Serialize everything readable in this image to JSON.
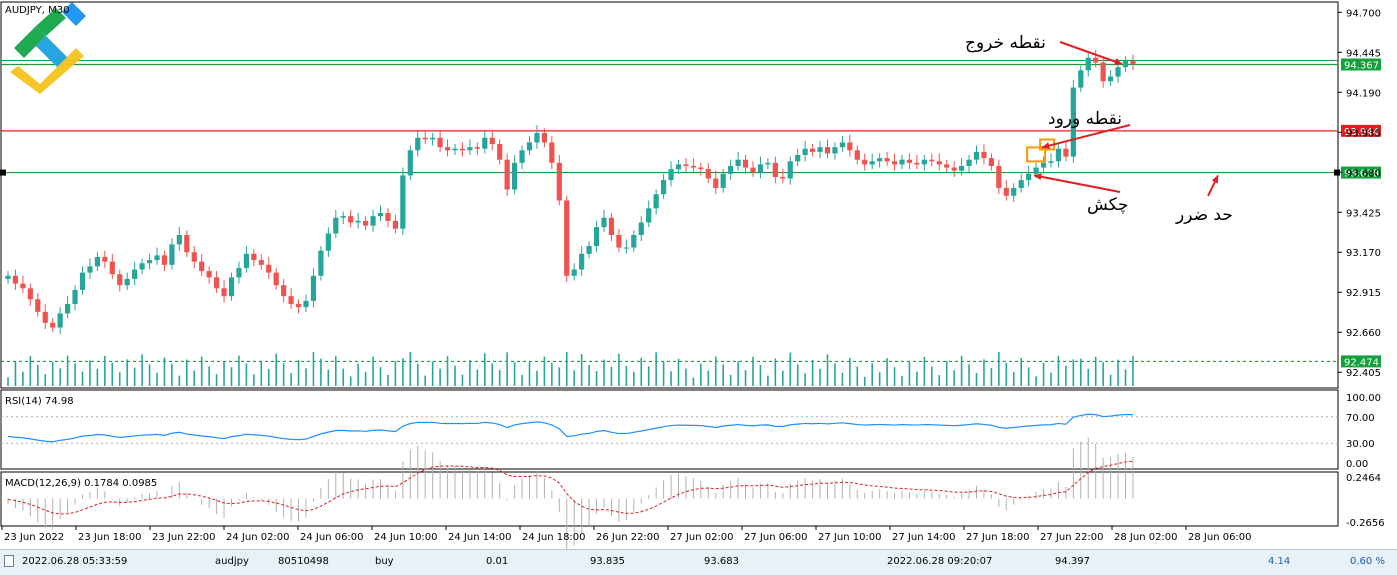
{
  "chart_data": {
    "type": "candlestick",
    "symbol_label": "AUDJPY, M30",
    "price_axis_ticks": [
      "94.700",
      "94.445",
      "94.190",
      "93.935",
      "93.680",
      "93.425",
      "93.170",
      "92.915",
      "92.660",
      "92.405"
    ],
    "time_axis_ticks": [
      "23 Jun 2022",
      "23 Jun 18:00",
      "23 Jun 22:00",
      "24 Jun 02:00",
      "24 Jun 06:00",
      "24 Jun 10:00",
      "24 Jun 14:00",
      "24 Jun 18:00",
      "26 Jun 22:00",
      "27 Jun 02:00",
      "27 Jun 06:00",
      "27 Jun 10:00",
      "27 Jun 14:00",
      "27 Jun 18:00",
      "27 Jun 22:00",
      "28 Jun 02:00",
      "28 Jun 06:00"
    ],
    "ylim": [
      92.33,
      94.74
    ],
    "closes": [
      93.02,
      92.97,
      92.94,
      92.87,
      92.79,
      92.72,
      92.69,
      92.78,
      92.84,
      92.93,
      93.04,
      93.08,
      93.14,
      93.11,
      93.03,
      92.96,
      93.0,
      93.06,
      93.1,
      93.12,
      93.15,
      93.09,
      93.22,
      93.28,
      93.17,
      93.11,
      93.05,
      93.01,
      92.94,
      92.89,
      93.01,
      93.07,
      93.16,
      93.12,
      93.09,
      93.04,
      92.96,
      92.89,
      92.84,
      92.82,
      92.86,
      93.02,
      93.18,
      93.29,
      93.39,
      93.4,
      93.36,
      93.37,
      93.34,
      93.4,
      93.42,
      93.37,
      93.32,
      93.66,
      93.82,
      93.9,
      93.89,
      93.9,
      93.84,
      93.82,
      93.83,
      93.82,
      93.84,
      93.83,
      93.9,
      93.86,
      93.76,
      93.57,
      93.74,
      93.82,
      93.87,
      93.93,
      93.87,
      93.74,
      93.5,
      93.02,
      93.06,
      93.16,
      93.21,
      93.33,
      93.39,
      93.28,
      93.2,
      93.2,
      93.28,
      93.36,
      93.45,
      93.54,
      93.63,
      93.7,
      93.73,
      93.72,
      93.71,
      93.7,
      93.64,
      93.58,
      93.67,
      93.72,
      93.76,
      93.71,
      93.68,
      93.73,
      93.74,
      93.65,
      93.64,
      93.75,
      93.79,
      93.83,
      93.81,
      93.84,
      93.8,
      93.84,
      93.87,
      93.82,
      93.76,
      93.73,
      93.75,
      93.77,
      93.75,
      93.73,
      93.76,
      93.74,
      93.73,
      93.76,
      93.75,
      93.73,
      93.71,
      93.69,
      93.72,
      93.76,
      93.81,
      93.77,
      93.72,
      93.58,
      93.53,
      93.58,
      93.63,
      93.67,
      93.71,
      93.74,
      93.75,
      93.83,
      93.78,
      94.22,
      94.33,
      94.41,
      94.38,
      94.26,
      94.29,
      94.35,
      94.39,
      94.37
    ],
    "support_lines": [
      {
        "value": 94.367,
        "label": "94.367",
        "color": "#14a03c"
      },
      {
        "value": 93.944,
        "label": "93.944",
        "color": "#e02020"
      },
      {
        "value": 93.678,
        "label": "93.678",
        "color": "#14a03c"
      },
      {
        "value": 92.474,
        "label": "92.474",
        "color": "#14a03c"
      }
    ],
    "rsi": {
      "label": "RSI(14) 74.98",
      "levels": [
        "100.00",
        "70.00",
        "30.00",
        "0.00"
      ]
    },
    "macd": {
      "label": "MACD(12,26,9) 0.1784 0.0985",
      "levels": [
        "0.2464",
        "-0.2656"
      ]
    },
    "annotations": {
      "exit": "نقطه خروج",
      "entry": "نقطه ورود",
      "hammer": "چکش",
      "stop_loss": "حد ضرر"
    },
    "colors": {
      "bull": "#26a69a",
      "bear": "#ef5350",
      "volume": "#26a69a",
      "rsi": "#1e90ff",
      "macd_signal": "#e02020"
    }
  },
  "status_bar": {
    "open_time": "2022.06.28 05:33:59",
    "symbol": "audjpy",
    "ticket": "80510498",
    "type": "buy",
    "volume": "0.01",
    "open_price": "93.835",
    "stop_loss": "93.683",
    "close_time": "2022.06.28 09:20:07",
    "close_price": "94.397",
    "profit": "4.14",
    "percent": "0.60 %"
  }
}
